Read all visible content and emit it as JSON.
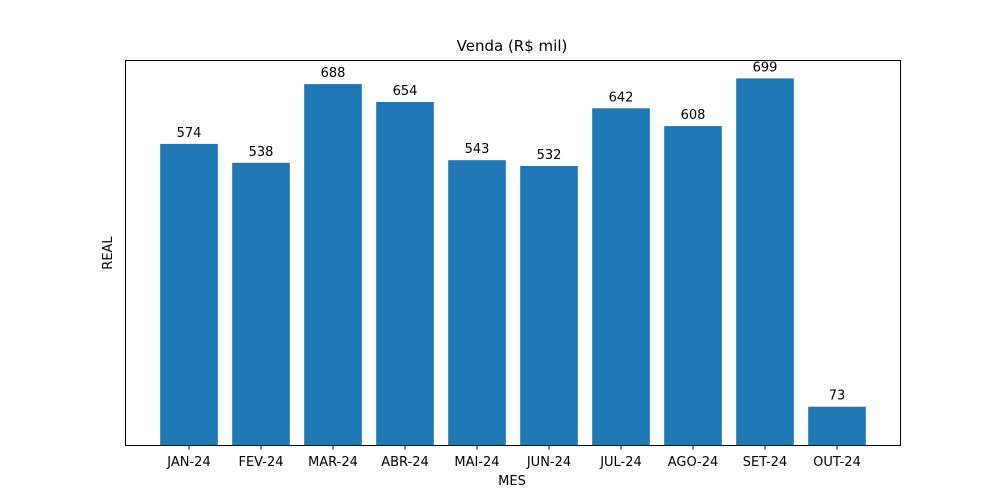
{
  "chart_data": {
    "type": "bar",
    "title": "Venda (R$ mil)",
    "xlabel": "MES",
    "ylabel": "REAL",
    "categories": [
      "JAN-24",
      "FEV-24",
      "MAR-24",
      "ABR-24",
      "MAI-24",
      "JUN-24",
      "JUL-24",
      "AGO-24",
      "SET-24",
      "OUT-24"
    ],
    "values": [
      574,
      538,
      688,
      654,
      543,
      532,
      642,
      608,
      699,
      73
    ],
    "data_labels": [
      "574",
      "538",
      "688",
      "654",
      "543",
      "532",
      "642",
      "608",
      "699",
      "73"
    ],
    "ylim": [
      0,
      734
    ],
    "y_ticks_visible": false,
    "grid": false,
    "bar_color": "#1f77b4"
  }
}
